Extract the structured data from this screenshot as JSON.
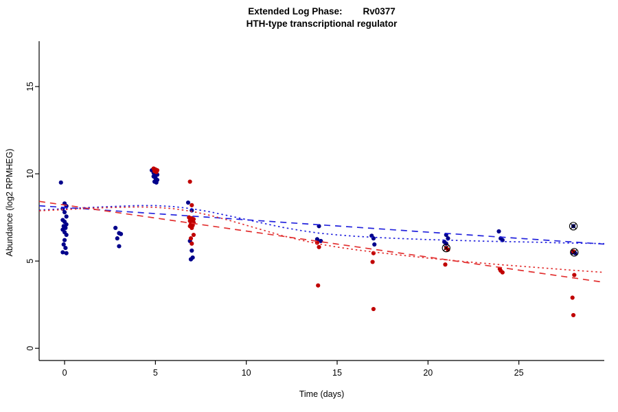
{
  "header": {
    "title_part1": "Extended Log Phase:",
    "title_part2": "Rv0377",
    "subtitle": "HTH-type transcriptional regulator"
  },
  "chart_data": {
    "type": "scatter",
    "title": "Extended Log Phase:   Rv0377",
    "subtitle": "HTH-type transcriptional regulator",
    "xlabel": "Time (days)",
    "ylabel": "Abundance (log2 RPMHEG)",
    "xlim": [
      -1.4,
      29.7
    ],
    "ylim": [
      -0.7,
      17.6
    ],
    "xticks": [
      0,
      5,
      10,
      15,
      20,
      25
    ],
    "yticks": [
      0,
      5,
      10,
      15
    ],
    "grid": false,
    "legend": "none",
    "colors": {
      "blue_points": "#00008B",
      "red_points": "#C00000",
      "blue_lines": "#2222DD",
      "red_lines": "#E23030",
      "outlier": "#000000"
    },
    "series": [
      {
        "name": "blue-replicates",
        "color": "#00008B",
        "points": [
          [
            -0.2,
            9.5
          ],
          [
            0,
            8.3
          ],
          [
            0.1,
            8.15
          ],
          [
            -0.1,
            8.0
          ],
          [
            0,
            7.8
          ],
          [
            0.1,
            7.55
          ],
          [
            -0.1,
            7.35
          ],
          [
            0,
            7.25
          ],
          [
            0.1,
            7.1
          ],
          [
            -0.05,
            7.0
          ],
          [
            0.05,
            6.9
          ],
          [
            -0.1,
            6.8
          ],
          [
            0,
            6.65
          ],
          [
            0.1,
            6.5
          ],
          [
            0,
            6.2
          ],
          [
            -0.05,
            5.95
          ],
          [
            0.05,
            5.75
          ],
          [
            -0.1,
            5.5
          ],
          [
            0.1,
            5.45
          ],
          [
            2.8,
            6.9
          ],
          [
            3.0,
            6.6
          ],
          [
            3.1,
            6.55
          ],
          [
            2.9,
            6.3
          ],
          [
            3.0,
            5.85
          ],
          [
            4.8,
            10.2
          ],
          [
            4.9,
            10.05
          ],
          [
            5.0,
            10.0
          ],
          [
            5.1,
            9.95
          ],
          [
            4.9,
            9.85
          ],
          [
            5.0,
            9.75
          ],
          [
            5.1,
            9.65
          ],
          [
            4.95,
            9.55
          ],
          [
            5.05,
            9.5
          ],
          [
            6.8,
            8.35
          ],
          [
            7.0,
            7.9
          ],
          [
            6.9,
            7.45
          ],
          [
            7.1,
            7.2
          ],
          [
            6.9,
            6.15
          ],
          [
            7.0,
            5.6
          ],
          [
            7.05,
            5.2
          ],
          [
            6.95,
            5.1
          ],
          [
            14.0,
            7.0
          ],
          [
            13.9,
            6.25
          ],
          [
            14.1,
            6.15
          ],
          [
            16.9,
            6.45
          ],
          [
            17.0,
            6.3
          ],
          [
            17.05,
            5.95
          ],
          [
            21.0,
            6.5
          ],
          [
            21.1,
            6.3
          ],
          [
            20.9,
            6.1
          ],
          [
            21.0,
            6.0
          ],
          [
            23.9,
            6.7
          ],
          [
            24.0,
            6.3
          ],
          [
            24.1,
            6.2
          ],
          [
            28.0,
            7.0
          ],
          [
            27.95,
            5.5
          ],
          [
            28.1,
            5.45
          ]
        ]
      },
      {
        "name": "red-replicates",
        "color": "#C00000",
        "points": [
          [
            4.9,
            10.3
          ],
          [
            5.0,
            10.25
          ],
          [
            5.1,
            10.2
          ],
          [
            4.95,
            10.15
          ],
          [
            5.05,
            10.1
          ],
          [
            6.9,
            9.55
          ],
          [
            7.0,
            8.2
          ],
          [
            6.85,
            7.5
          ],
          [
            7.0,
            7.45
          ],
          [
            7.1,
            7.4
          ],
          [
            6.9,
            7.3
          ],
          [
            7.0,
            7.25
          ],
          [
            7.1,
            7.2
          ],
          [
            6.95,
            7.1
          ],
          [
            7.05,
            7.05
          ],
          [
            6.9,
            7.0
          ],
          [
            7.0,
            6.9
          ],
          [
            7.1,
            6.5
          ],
          [
            6.95,
            6.3
          ],
          [
            7.0,
            6.0
          ],
          [
            13.9,
            6.05
          ],
          [
            14.0,
            5.8
          ],
          [
            13.95,
            3.6
          ],
          [
            17.0,
            5.45
          ],
          [
            16.95,
            4.95
          ],
          [
            17.0,
            2.25
          ],
          [
            21.0,
            5.75
          ],
          [
            21.1,
            5.65
          ],
          [
            20.95,
            4.8
          ],
          [
            23.95,
            4.55
          ],
          [
            24.0,
            4.45
          ],
          [
            24.1,
            4.35
          ],
          [
            28.0,
            5.55
          ],
          [
            28.05,
            4.2
          ],
          [
            27.95,
            2.9
          ],
          [
            28.0,
            1.9
          ]
        ]
      }
    ],
    "lines": [
      {
        "name": "blue-dashed-fit",
        "color": "#2222DD",
        "dash": "9,7",
        "points": [
          [
            -1.4,
            8.17
          ],
          [
            29.7,
            5.97
          ]
        ]
      },
      {
        "name": "red-dashed-fit",
        "color": "#E23030",
        "dash": "9,7",
        "points": [
          [
            -1.4,
            8.42
          ],
          [
            29.7,
            3.78
          ]
        ]
      },
      {
        "name": "blue-dotted-fit",
        "color": "#2222DD",
        "dash": "2.5,4",
        "points": [
          [
            -1.4,
            7.92
          ],
          [
            0,
            8.0
          ],
          [
            2,
            8.1
          ],
          [
            4,
            8.18
          ],
          [
            5,
            8.18
          ],
          [
            6,
            8.12
          ],
          [
            7,
            8.0
          ],
          [
            8,
            7.82
          ],
          [
            9,
            7.6
          ],
          [
            10,
            7.38
          ],
          [
            11,
            7.15
          ],
          [
            12,
            6.93
          ],
          [
            13,
            6.75
          ],
          [
            14,
            6.6
          ],
          [
            15,
            6.5
          ],
          [
            16,
            6.42
          ],
          [
            17,
            6.36
          ],
          [
            18,
            6.31
          ],
          [
            19,
            6.27
          ],
          [
            20,
            6.23
          ],
          [
            21,
            6.2
          ],
          [
            22,
            6.17
          ],
          [
            23,
            6.14
          ],
          [
            24,
            6.12
          ],
          [
            25,
            6.1
          ],
          [
            26,
            6.08
          ],
          [
            27,
            6.05
          ],
          [
            28,
            6.03
          ],
          [
            29.7,
            6.0
          ]
        ]
      },
      {
        "name": "red-dotted-fit",
        "color": "#E23030",
        "dash": "2.5,4",
        "points": [
          [
            -1.4,
            7.88
          ],
          [
            0,
            7.95
          ],
          [
            2,
            8.05
          ],
          [
            4,
            8.1
          ],
          [
            5,
            8.08
          ],
          [
            6,
            8.0
          ],
          [
            7,
            7.85
          ],
          [
            8,
            7.62
          ],
          [
            9,
            7.35
          ],
          [
            10,
            7.05
          ],
          [
            11,
            6.75
          ],
          [
            12,
            6.45
          ],
          [
            13,
            6.2
          ],
          [
            14,
            5.98
          ],
          [
            15,
            5.8
          ],
          [
            16,
            5.65
          ],
          [
            17,
            5.52
          ],
          [
            18,
            5.4
          ],
          [
            19,
            5.28
          ],
          [
            20,
            5.17
          ],
          [
            21,
            5.07
          ],
          [
            22,
            4.97
          ],
          [
            23,
            4.88
          ],
          [
            24,
            4.79
          ],
          [
            25,
            4.71
          ],
          [
            26,
            4.63
          ],
          [
            27,
            4.55
          ],
          [
            28,
            4.47
          ],
          [
            29.7,
            4.35
          ]
        ]
      }
    ],
    "outliers": [
      [
        21.0,
        5.75
      ],
      [
        28.0,
        7.0
      ],
      [
        28.05,
        5.5
      ]
    ]
  }
}
